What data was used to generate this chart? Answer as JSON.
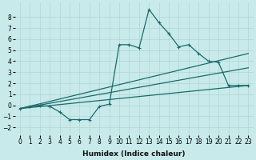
{
  "bg_color": "#c8eaea",
  "grid_color": "#b0d4d4",
  "line_color": "#1a6b6b",
  "marker": "+",
  "markersize": 3,
  "linewidth": 0.9,
  "xlabel": "Humidex (Indice chaleur)",
  "xlabel_fontsize": 6.5,
  "tick_fontsize": 5.5,
  "xlim": [
    -0.5,
    23.5
  ],
  "ylim": [
    -2.7,
    9.3
  ],
  "xticks": [
    0,
    1,
    2,
    3,
    4,
    5,
    6,
    7,
    8,
    9,
    10,
    11,
    12,
    13,
    14,
    15,
    16,
    17,
    18,
    19,
    20,
    21,
    22,
    23
  ],
  "yticks": [
    -2,
    -1,
    0,
    1,
    2,
    3,
    4,
    5,
    6,
    7,
    8
  ],
  "line1_x": [
    0,
    1,
    2,
    3,
    4,
    5,
    6,
    7,
    8,
    9,
    10,
    11,
    12,
    13,
    14,
    15,
    16,
    17,
    18,
    19,
    20,
    21,
    22,
    23
  ],
  "line1_y": [
    -0.3,
    -0.1,
    0.0,
    -0.1,
    -0.6,
    -1.3,
    -1.3,
    -1.3,
    -0.1,
    0.1,
    5.5,
    5.5,
    5.2,
    8.7,
    7.5,
    6.5,
    5.3,
    5.5,
    4.7,
    4.0,
    3.9,
    1.8,
    1.8,
    1.8
  ],
  "line2_x": [
    0,
    23
  ],
  "line2_y": [
    -0.3,
    4.7
  ],
  "line3_x": [
    0,
    23
  ],
  "line3_y": [
    -0.3,
    3.4
  ],
  "line4_x": [
    0,
    23
  ],
  "line4_y": [
    -0.3,
    1.8
  ]
}
